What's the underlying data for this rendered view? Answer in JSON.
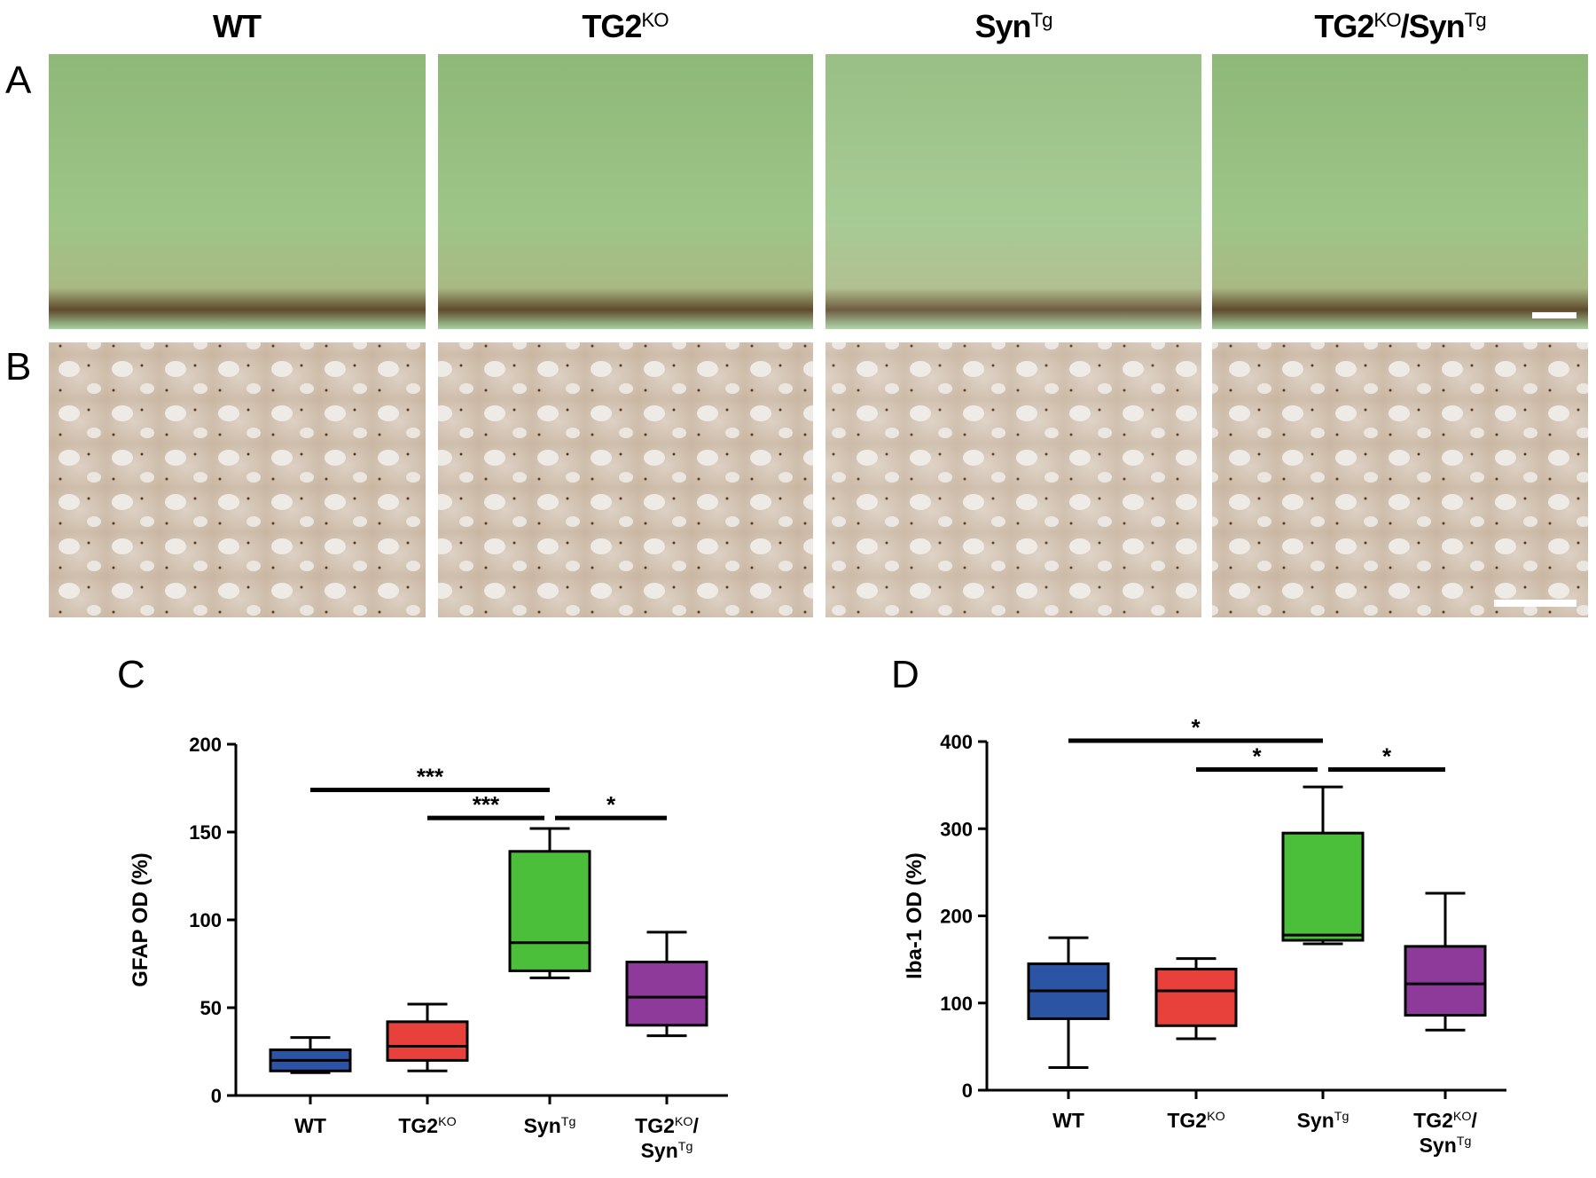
{
  "figure": {
    "columns": [
      [
        {
          "text": "WT"
        }
      ],
      [
        {
          "text": "TG2"
        },
        {
          "text": "KO",
          "sup": true
        }
      ],
      [
        {
          "text": "Syn"
        },
        {
          "text": "Tg",
          "sup": true
        }
      ],
      [
        {
          "text": "TG2"
        },
        {
          "text": "KO",
          "sup": true
        },
        {
          "text": "/Syn"
        },
        {
          "text": "Tg",
          "sup": true
        }
      ]
    ],
    "panel_labels": [
      "A",
      "B",
      "C",
      "D"
    ]
  },
  "chart_data": [
    {
      "type": "box",
      "y_label": "GFAP OD (%)",
      "ylim": [
        0,
        200
      ],
      "yticks": [
        0,
        50,
        100,
        150,
        200
      ],
      "categories": [
        [
          [
            {
              "text": "WT"
            }
          ]
        ],
        [
          [
            {
              "text": "TG2"
            },
            {
              "text": "KO",
              "sup": true
            }
          ]
        ],
        [
          [
            {
              "text": "Syn"
            },
            {
              "text": "Tg",
              "sup": true
            }
          ]
        ],
        [
          [
            {
              "text": "TG2"
            },
            {
              "text": "KO",
              "sup": true
            },
            {
              "text": "/"
            }
          ],
          [
            {
              "text": "Syn"
            },
            {
              "text": "Tg",
              "sup": true
            }
          ]
        ]
      ],
      "boxes": [
        {
          "min": 13,
          "q1": 14,
          "median": 20,
          "q3": 26,
          "max": 33,
          "color": "#2b55a4"
        },
        {
          "min": 14,
          "q1": 20,
          "median": 28,
          "q3": 42,
          "max": 52,
          "color": "#e8413c"
        },
        {
          "min": 67,
          "q1": 71,
          "median": 87,
          "q3": 139,
          "max": 152,
          "color": "#4cbf3a"
        },
        {
          "min": 34,
          "q1": 40,
          "median": 56,
          "q3": 76,
          "max": 93,
          "color": "#8e3a9a"
        }
      ],
      "comparisons": [
        {
          "from": 0,
          "to": 2,
          "y": 174,
          "label": "***"
        },
        {
          "from": 1,
          "to": 2,
          "y": 158,
          "label": "***"
        },
        {
          "from": 2,
          "to": 3,
          "y": 158,
          "label": "*"
        }
      ]
    },
    {
      "type": "box",
      "y_label": "Iba-1 OD (%)",
      "ylim": [
        0,
        400
      ],
      "yticks": [
        0,
        100,
        200,
        300,
        400
      ],
      "categories": [
        [
          [
            {
              "text": "WT"
            }
          ]
        ],
        [
          [
            {
              "text": "TG2"
            },
            {
              "text": "KO",
              "sup": true
            }
          ]
        ],
        [
          [
            {
              "text": "Syn"
            },
            {
              "text": "Tg",
              "sup": true
            }
          ]
        ],
        [
          [
            {
              "text": "TG2"
            },
            {
              "text": "KO",
              "sup": true
            },
            {
              "text": "/"
            }
          ],
          [
            {
              "text": "Syn"
            },
            {
              "text": "Tg",
              "sup": true
            }
          ]
        ]
      ],
      "boxes": [
        {
          "min": 26,
          "q1": 82,
          "median": 114,
          "q3": 145,
          "max": 175,
          "color": "#2b55a4"
        },
        {
          "min": 59,
          "q1": 74,
          "median": 114,
          "q3": 139,
          "max": 151,
          "color": "#e8413c"
        },
        {
          "min": 168,
          "q1": 172,
          "median": 178,
          "q3": 295,
          "max": 348,
          "color": "#4cbf3a"
        },
        {
          "min": 69,
          "q1": 86,
          "median": 122,
          "q3": 165,
          "max": 226,
          "color": "#8e3a9a"
        }
      ],
      "comparisons": [
        {
          "from": 0,
          "to": 2,
          "y": 401,
          "label": "*"
        },
        {
          "from": 1,
          "to": 2,
          "y": 368,
          "label": "*"
        },
        {
          "from": 2,
          "to": 3,
          "y": 368,
          "label": "*"
        }
      ]
    }
  ]
}
